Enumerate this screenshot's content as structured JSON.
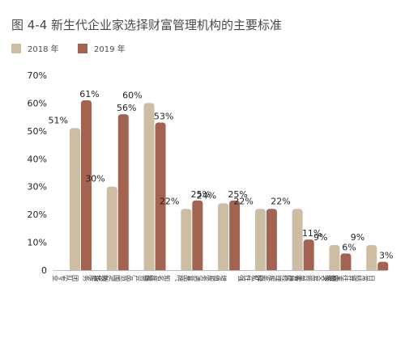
{
  "chart_data": {
    "type": "bar",
    "title": "图 4-4  新生代企业家选择财富管理机构的主要标准",
    "xlabel": "",
    "ylabel": "",
    "ylim": [
      0,
      70
    ],
    "yticks": [
      "0",
      "10%",
      "20%",
      "30%",
      "40%",
      "50%",
      "60%",
      "70%"
    ],
    "ytick_values": [
      0,
      10,
      20,
      30,
      40,
      50,
      60,
      70
    ],
    "grid": false,
    "legend": "top-left",
    "categories": [
      "团队专业",
      "定制化服务",
      "投资产品范围、收益",
      "品牌、知名度高",
      "增值服务满意",
      "隐私性强",
      "客户经理服务好",
      "网络交易简单方便",
      "日常结算往来最多"
    ],
    "series": [
      {
        "name": "2018 年",
        "color": "#cdbea3",
        "values": [
          51,
          30,
          60,
          22,
          24,
          22,
          22,
          9,
          9
        ],
        "labels": [
          "51%",
          "30%",
          "60%",
          "22%",
          "24%",
          "22%",
          "22%",
          "9%",
          "9%"
        ]
      },
      {
        "name": "2019 年",
        "color": "#a46350",
        "values": [
          61,
          56,
          53,
          25,
          25,
          null,
          11,
          6,
          3
        ],
        "labels": [
          "61%",
          "56%",
          "53%",
          "25%",
          "25%",
          "",
          "11%",
          "6%",
          "3%"
        ],
        "drawn_values": [
          61,
          56,
          53,
          25,
          25,
          22,
          11,
          6,
          3
        ]
      }
    ]
  }
}
